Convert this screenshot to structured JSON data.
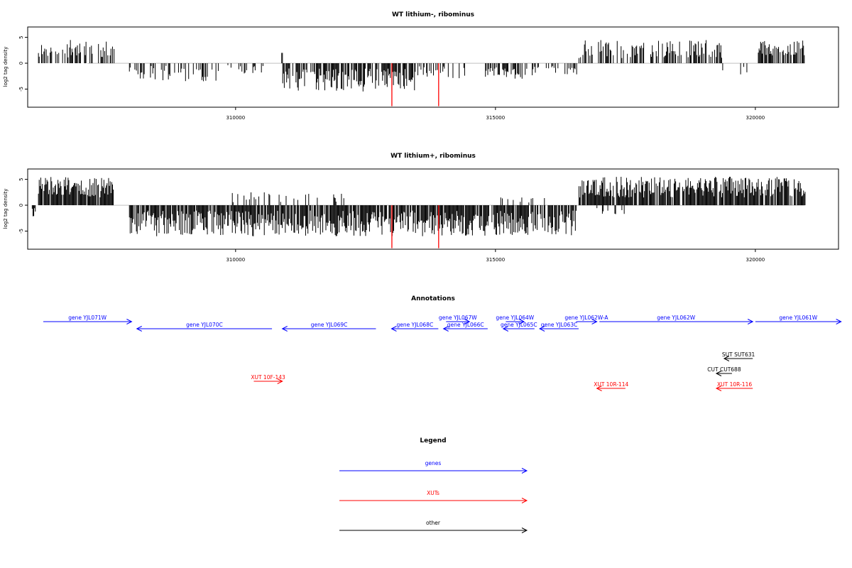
{
  "chart_data": [
    {
      "type": "bar",
      "title": "WT lithium-, ribominus",
      "ylabel": "log2 tag density",
      "xlim": [
        306000,
        321600
      ],
      "ylim": [
        -8.5,
        7
      ],
      "yticks": [
        -5,
        0,
        5
      ],
      "xticks": [
        310000,
        315000,
        320000
      ],
      "highlight_color": "#ff0000",
      "highlights": [
        {
          "x": 313000,
          "value": -8.3
        },
        {
          "x": 313900,
          "value": -8.3
        }
      ],
      "segments": [
        {
          "x0": 306200,
          "x1": 307680,
          "side": "up",
          "amp": [
            1,
            4.5
          ],
          "density": 0.45,
          "seed": 11
        },
        {
          "x0": 307950,
          "x1": 309700,
          "side": "down",
          "amp": [
            0.5,
            3.5
          ],
          "density": 0.35,
          "seed": 12
        },
        {
          "x0": 309800,
          "x1": 310800,
          "side": "down",
          "amp": [
            0.3,
            2
          ],
          "density": 0.18,
          "seed": 13
        },
        {
          "x0": 310880,
          "x1": 310900,
          "side": "up",
          "amp": [
            2,
            2
          ],
          "density": 1,
          "seed": 14
        },
        {
          "x0": 310900,
          "x1": 313500,
          "side": "down",
          "amp": [
            1,
            5.5
          ],
          "density": 0.75,
          "seed": 15
        },
        {
          "x0": 313500,
          "x1": 314400,
          "side": "down",
          "amp": [
            0.5,
            3
          ],
          "density": 0.35,
          "seed": 16
        },
        {
          "x0": 314800,
          "x1": 315600,
          "side": "down",
          "amp": [
            0.8,
            3
          ],
          "density": 0.55,
          "seed": 17
        },
        {
          "x0": 315700,
          "x1": 316600,
          "side": "down",
          "amp": [
            0.5,
            2.5
          ],
          "density": 0.3,
          "seed": 18
        },
        {
          "x0": 316600,
          "x1": 319350,
          "side": "up",
          "amp": [
            1,
            4.5
          ],
          "density": 0.5,
          "seed": 19
        },
        {
          "x0": 319350,
          "x1": 319950,
          "side": "down",
          "amp": [
            0.5,
            2.2
          ],
          "density": 0.15,
          "seed": 20
        },
        {
          "x0": 320050,
          "x1": 320950,
          "side": "up",
          "amp": [
            1.5,
            4.5
          ],
          "density": 0.7,
          "seed": 21
        }
      ]
    },
    {
      "type": "bar",
      "title": "WT lithium+, ribominus",
      "ylabel": "log2 tag density",
      "xlim": [
        306000,
        321600
      ],
      "ylim": [
        -8.5,
        7
      ],
      "yticks": [
        -5,
        0,
        5
      ],
      "xticks": [
        310000,
        315000,
        320000
      ],
      "highlight_color": "#ff0000",
      "highlights": [
        {
          "x": 313000,
          "value": -8.3
        },
        {
          "x": 313900,
          "value": -8.3
        }
      ],
      "segments": [
        {
          "x0": 306080,
          "x1": 306180,
          "side": "down",
          "amp": [
            0.5,
            2.5
          ],
          "density": 0.8,
          "seed": 31
        },
        {
          "x0": 306200,
          "x1": 307650,
          "side": "up",
          "amp": [
            1.5,
            5.5
          ],
          "density": 0.85,
          "seed": 32
        },
        {
          "x0": 307950,
          "x1": 316550,
          "side": "down",
          "amp": [
            1,
            6
          ],
          "density": 0.85,
          "seed": 33
        },
        {
          "x0": 309900,
          "x1": 312100,
          "side": "up",
          "amp": [
            0.5,
            2.5
          ],
          "density": 0.18,
          "seed": 34
        },
        {
          "x0": 314900,
          "x1": 316100,
          "side": "up",
          "amp": [
            0.3,
            1.5
          ],
          "density": 0.2,
          "seed": 35
        },
        {
          "x0": 316600,
          "x1": 320950,
          "side": "up",
          "amp": [
            1.5,
            5.5
          ],
          "density": 0.85,
          "seed": 36
        },
        {
          "x0": 316900,
          "x1": 317600,
          "side": "down",
          "amp": [
            0.5,
            2
          ],
          "density": 0.15,
          "seed": 37
        }
      ]
    }
  ],
  "annotations": {
    "title": "Annotations",
    "xlim": [
      306000,
      321600
    ],
    "colors": {
      "genes": "#0000ff",
      "XUTs": "#ff0000",
      "other": "#000000"
    },
    "features": [
      {
        "label": "gene YJL071W",
        "type": "genes",
        "strand": "+",
        "start": 306300,
        "end": 308000,
        "row": 0
      },
      {
        "label": "gene YJL070C",
        "type": "genes",
        "strand": "-",
        "start": 308100,
        "end": 310700,
        "row": 1
      },
      {
        "label": "gene YJL069C",
        "type": "genes",
        "strand": "-",
        "start": 310900,
        "end": 312700,
        "row": 1
      },
      {
        "label": "gene YJL068C",
        "type": "genes",
        "strand": "-",
        "start": 313000,
        "end": 313900,
        "row": 1
      },
      {
        "label": "gene YJL067W",
        "type": "genes",
        "strand": "+",
        "start": 314050,
        "end": 314500,
        "row": 0
      },
      {
        "label": "gene YJL066C",
        "type": "genes",
        "strand": "-",
        "start": 314000,
        "end": 314850,
        "row": 1
      },
      {
        "label": "gene YJL064W",
        "type": "genes",
        "strand": "+",
        "start": 315200,
        "end": 315550,
        "row": 0
      },
      {
        "label": "gene YJL065C",
        "type": "genes",
        "strand": "-",
        "start": 315150,
        "end": 315750,
        "row": 1
      },
      {
        "label": "gene YJL063C",
        "type": "genes",
        "strand": "-",
        "start": 315850,
        "end": 316600,
        "row": 1
      },
      {
        "label": "gene YJL062W-A",
        "type": "genes",
        "strand": "+",
        "start": 316550,
        "end": 316950,
        "row": 0
      },
      {
        "label": "gene YJL062W",
        "type": "genes",
        "strand": "+",
        "start": 317000,
        "end": 319950,
        "row": 0
      },
      {
        "label": "gene YJL061W",
        "type": "genes",
        "strand": "+",
        "start": 320000,
        "end": 321650,
        "row": 0
      },
      {
        "label": "SUT SUT631",
        "type": "other",
        "strand": "-",
        "start": 319400,
        "end": 319950,
        "row": 3
      },
      {
        "label": "CUT CUT688",
        "type": "other",
        "strand": "-",
        "start": 319250,
        "end": 319550,
        "row": 4
      },
      {
        "label": "XUT 10F-143",
        "type": "XUTs",
        "strand": "+",
        "start": 310350,
        "end": 310900,
        "row": 5
      },
      {
        "label": "XUT 10R-114",
        "type": "XUTs",
        "strand": "-",
        "start": 316950,
        "end": 317500,
        "row": 6
      },
      {
        "label": "XUT 10R-116",
        "type": "XUTs",
        "strand": "-",
        "start": 319250,
        "end": 319950,
        "row": 6
      }
    ]
  },
  "legend": {
    "title": "Legend",
    "items": [
      {
        "label": "genes",
        "color": "#0000ff"
      },
      {
        "label": "XUTs",
        "color": "#ff0000"
      },
      {
        "label": "other",
        "color": "#000000"
      }
    ]
  }
}
